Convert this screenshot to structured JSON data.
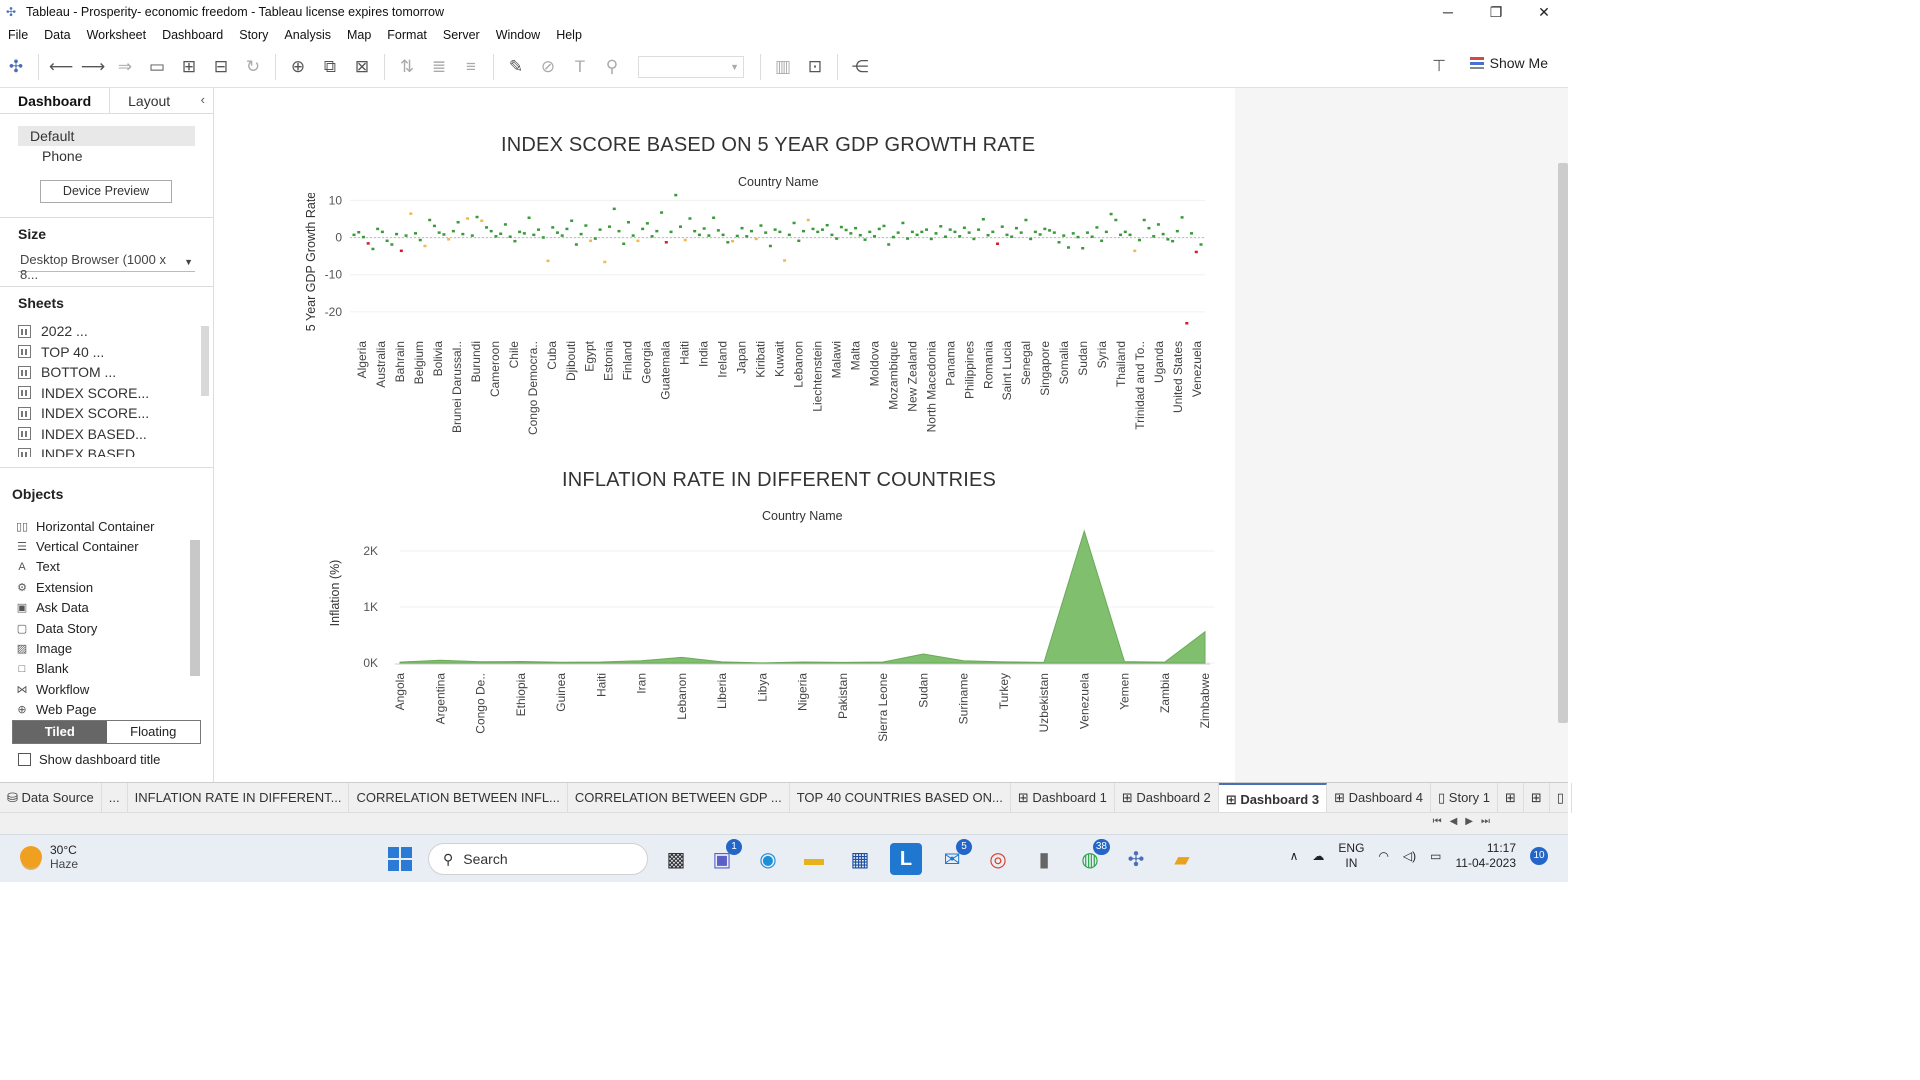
{
  "window": {
    "title": "Tableau - Prosperity- economic freedom - Tableau license expires tomorrow"
  },
  "menu": [
    "File",
    "Data",
    "Worksheet",
    "Dashboard",
    "Story",
    "Analysis",
    "Map",
    "Format",
    "Server",
    "Window",
    "Help"
  ],
  "toolbar": {
    "show_me_label": "Show Me"
  },
  "left_pane": {
    "tabs": {
      "dashboard": "Dashboard",
      "layout": "Layout"
    },
    "devices": {
      "default": "Default",
      "phone": "Phone"
    },
    "device_preview_label": "Device Preview",
    "size": {
      "heading": "Size",
      "value": "Desktop Browser (1000 x 8..."
    },
    "sheets": {
      "heading": "Sheets",
      "items": [
        "2022 ...",
        "TOP 40 ...",
        "BOTTOM ...",
        "INDEX SCORE...",
        "INDEX SCORE...",
        "INDEX BASED...",
        "INDEX BASED..."
      ]
    },
    "objects": {
      "heading": "Objects",
      "items": [
        "Horizontal Container",
        "Vertical Container",
        "Text",
        "Extension",
        "Ask Data",
        "Data Story",
        "Image",
        "Blank",
        "Workflow",
        "Web Page"
      ]
    },
    "layout_mode": {
      "tiled": "Tiled",
      "floating": "Floating"
    },
    "show_title_label": "Show dashboard title"
  },
  "chart_data": [
    {
      "type": "scatter",
      "title": "INDEX SCORE BASED ON 5 YEAR GDP GROWTH RATE",
      "column_header": "Country Name",
      "ylabel": "5 Year GDP Growth Rate..",
      "ylim": [
        -23,
        12
      ],
      "yticks": [
        10,
        0,
        -10,
        -20
      ],
      "x_tick_labels": [
        "Algeria",
        "Australia",
        "Bahrain",
        "Belgium",
        "Bolivia",
        "Brunei Darussal..",
        "Burundi",
        "Cameroon",
        "Chile",
        "Congo Democra..",
        "Cuba",
        "Djibouti",
        "Egypt",
        "Estonia",
        "Finland",
        "Georgia",
        "Guatemala",
        "Haiti",
        "India",
        "Ireland",
        "Japan",
        "Kiribati",
        "Kuwait",
        "Lebanon",
        "Liechtenstein",
        "Malawi",
        "Malta",
        "Moldova",
        "Mozambique",
        "New Zealand",
        "North Macedonia",
        "Panama",
        "Philippines",
        "Romania",
        "Saint Lucia",
        "Senegal",
        "Singapore",
        "Somalia",
        "Sudan",
        "Syria",
        "Thailand",
        "Trinidad and To..",
        "Uganda",
        "United States",
        "Venezuela"
      ],
      "values": [
        0.8,
        1.5,
        0.2,
        -1.5,
        -3.0,
        2.4,
        1.6,
        -0.8,
        -1.8,
        1.0,
        -3.5,
        0.6,
        6.5,
        1.2,
        -0.6,
        -2.2,
        4.8,
        3.2,
        1.4,
        0.9,
        -0.4,
        1.8,
        4.2,
        1.0,
        5.2,
        0.6,
        5.6,
        4.6,
        2.8,
        1.8,
        0.4,
        1.1,
        3.6,
        0.3,
        -0.9,
        1.6,
        1.2,
        5.4,
        0.8,
        2.2,
        0.1,
        -6.2,
        2.8,
        1.4,
        0.6,
        2.4,
        4.6,
        -1.8,
        1.0,
        3.3,
        -0.8,
        -0.2,
        2.2,
        -6.5,
        3.0,
        7.8,
        1.8,
        -1.6,
        4.2,
        0.6,
        -0.8,
        2.4,
        3.9,
        0.4,
        1.8,
        6.8,
        -1.2,
        1.6,
        11.5,
        3.0,
        -0.6,
        5.2,
        1.8,
        0.8,
        2.5,
        0.6,
        5.4,
        2.0,
        0.8,
        -1.2,
        -0.9,
        0.5,
        2.6,
        0.4,
        1.8,
        -0.3,
        3.3,
        1.4,
        -2.2,
        2.2,
        1.6,
        -6.1,
        0.8,
        4.0,
        -0.8,
        1.8,
        4.8,
        2.4,
        1.6,
        2.2,
        3.4,
        0.8,
        -0.2,
        2.9,
        2.1,
        1.2,
        2.6,
        0.7,
        -0.5,
        1.6,
        0.4,
        2.4,
        3.2,
        -1.8,
        0.2,
        1.4,
        4.0,
        -0.2,
        1.6,
        0.8,
        1.6,
        2.2,
        -0.3,
        1.2,
        3.1,
        0.3,
        2.2,
        1.6,
        0.4,
        2.7,
        1.4,
        -0.3,
        2.2,
        5.0,
        0.7,
        1.6,
        -1.6,
        3.0,
        0.8,
        0.3,
        2.6,
        1.4,
        4.8,
        -0.3,
        1.6,
        0.9,
        2.4,
        2.0,
        1.4,
        -1.2,
        0.6,
        -2.6,
        1.2,
        0.2,
        -2.8,
        1.4,
        0.3,
        2.8,
        -0.8,
        1.6,
        6.4,
        4.8,
        0.8,
        1.6,
        0.8,
        -3.5,
        -0.6,
        4.8,
        2.6,
        0.4,
        3.6,
        1.0,
        -0.4,
        -0.9,
        1.8,
        5.5,
        -23.0,
        1.2,
        -3.8,
        -1.8
      ],
      "mark_colors": {
        "positive": "#3a9a3a",
        "moderate": "#f2b84b",
        "negative": "#d7192c"
      }
    },
    {
      "type": "area",
      "title": "INFLATION RATE IN DIFFERENT COUNTRIES",
      "column_header": "Country Name",
      "ylabel": "Inflation (%)",
      "ylim": [
        0,
        2500
      ],
      "ytick_labels": [
        "0K",
        "1K",
        "2K"
      ],
      "yticks": [
        0,
        1000,
        2000
      ],
      "x_tick_labels": [
        "Angola",
        "Argentina",
        "Congo De..",
        "Ethiopia",
        "Guinea",
        "Haiti",
        "Iran",
        "Lebanon",
        "Liberia",
        "Libya",
        "Nigeria",
        "Pakistan",
        "Sierra Leone",
        "Sudan",
        "Suriname",
        "Turkey",
        "Uzbekistan",
        "Venezuela",
        "Yemen",
        "Zambia",
        "Zimbabwe"
      ],
      "values": [
        17,
        48,
        22,
        27,
        13,
        17,
        40,
        100,
        20,
        3,
        17,
        12,
        17,
        160,
        40,
        20,
        11,
        2356,
        24,
        16,
        557
      ],
      "color": "#7fbf6e"
    }
  ],
  "sheet_tabs": [
    "Data Source",
    "...",
    "INFLATION RATE IN DIFFERENT...",
    "CORRELATION BETWEEN INFL...",
    "CORRELATION BETWEEN GDP ...",
    "TOP 40 COUNTRIES BASED ON...",
    "Dashboard 1",
    "Dashboard 2",
    "Dashboard 3",
    "Dashboard 4",
    "Story 1"
  ],
  "taskbar": {
    "weather": {
      "temp": "30°C",
      "condition": "Haze"
    },
    "search_label": "Search",
    "badges": {
      "teams": "1",
      "mail": "5",
      "whatsapp": "38"
    },
    "lang": {
      "line1": "ENG",
      "line2": "IN"
    },
    "time": "11:17",
    "date": "11-04-2023",
    "notifications": "10"
  }
}
